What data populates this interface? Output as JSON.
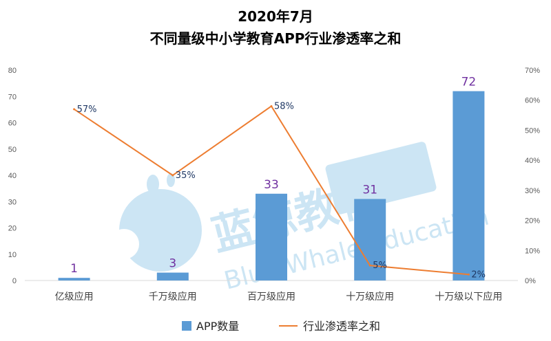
{
  "watermark": {
    "brand_cn": "蓝鲸教育",
    "brand_en": "Blue Whale Education",
    "color": "#4aa3d6"
  },
  "chart_data": {
    "type": "bar",
    "title_line1": "2020年7月",
    "title_line2": "不同量级中小学教育APP行业渗透率之和",
    "categories": [
      "亿级应用",
      "千万级应用",
      "百万级应用",
      "十万级应用",
      "十万级以下应用"
    ],
    "series": [
      {
        "name": "APP数量",
        "kind": "bar",
        "axis": "left",
        "color": "#5b9bd5",
        "values": [
          1,
          3,
          33,
          31,
          72
        ],
        "labels": [
          "1",
          "3",
          "33",
          "31",
          "72"
        ]
      },
      {
        "name": "行业渗透率之和",
        "kind": "line",
        "axis": "right",
        "color": "#ed7d31",
        "values": [
          0.57,
          0.35,
          0.58,
          0.05,
          0.02
        ],
        "labels": [
          "57%",
          "35%",
          "58%",
          "5%",
          "2%"
        ]
      }
    ],
    "y_left": {
      "min": 0,
      "max": 80,
      "step": 10,
      "ticks": [
        "0",
        "10",
        "20",
        "30",
        "40",
        "50",
        "60",
        "70",
        "80"
      ]
    },
    "y_right": {
      "min": 0,
      "max": 0.7,
      "step": 0.1,
      "ticks": [
        "0%",
        "10%",
        "20%",
        "30%",
        "40%",
        "50%",
        "60%",
        "70%"
      ]
    },
    "grid": false,
    "legend_position": "bottom"
  }
}
